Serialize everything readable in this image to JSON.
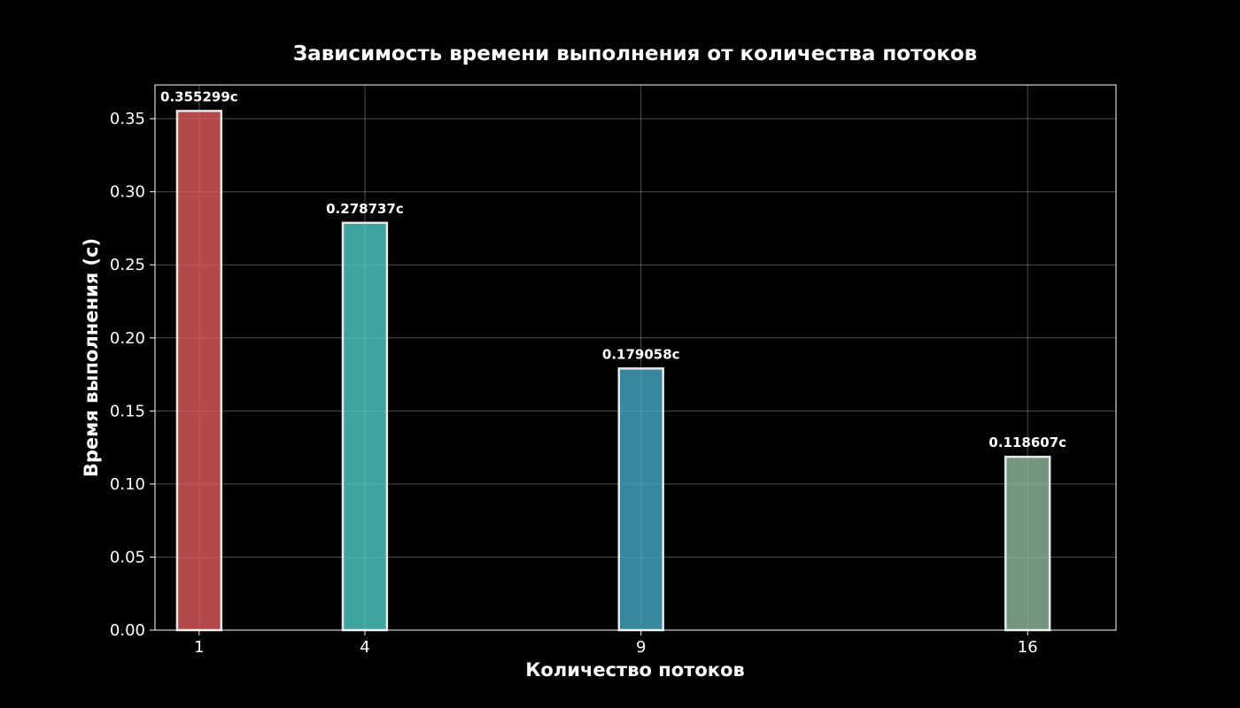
{
  "chart_data": {
    "type": "bar",
    "title": "Зависимость времени выполнения от количества потоков",
    "xlabel": "Количество потоков",
    "ylabel": "Время выполнения (с)",
    "x": [
      1,
      4,
      9,
      16
    ],
    "x_tick_labels": [
      "1",
      "4",
      "9",
      "16"
    ],
    "values": [
      0.355299,
      0.278737,
      0.179058,
      0.118607
    ],
    "value_labels": [
      "0.355299с",
      "0.278737с",
      "0.179058с",
      "0.118607с"
    ],
    "bar_colors": [
      "#e05d5d",
      "#4ecdc4",
      "#45aac4",
      "#8fbca0"
    ],
    "bar_edge_color": "#e8e8e8",
    "xlim": [
      0.2,
      17.6
    ],
    "ylim": [
      0,
      0.3731
    ],
    "y_ticks": [
      0.0,
      0.05,
      0.1,
      0.15,
      0.2,
      0.25,
      0.3,
      0.35
    ],
    "y_tick_labels": [
      "0.00",
      "0.05",
      "0.10",
      "0.15",
      "0.20",
      "0.25",
      "0.30",
      "0.35"
    ],
    "grid": true,
    "background": "#000000",
    "text_color": "#ffffff"
  }
}
